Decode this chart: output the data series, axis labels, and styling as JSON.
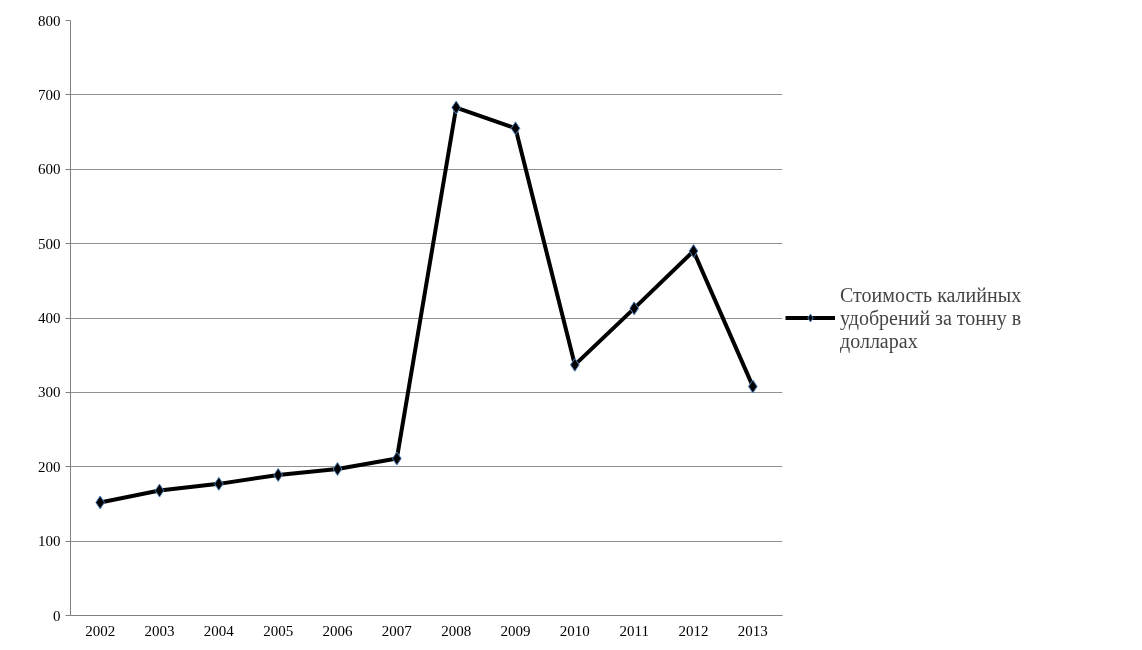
{
  "chart_data": {
    "type": "line",
    "categories": [
      "2002",
      "2003",
      "2004",
      "2005",
      "2006",
      "2007",
      "2008",
      "2009",
      "2010",
      "2011",
      "2012",
      "2013"
    ],
    "series": [
      {
        "name": "Стоимость калийных удобрений за тонну в долларах",
        "color": "#000000",
        "values": [
          152,
          168,
          177,
          189,
          197,
          211,
          683,
          655,
          337,
          413,
          490,
          308
        ]
      }
    ],
    "ylim": [
      0,
      800
    ],
    "yticks": [
      0,
      100,
      200,
      300,
      400,
      500,
      600,
      700,
      800
    ],
    "grid": "y",
    "legend": "right",
    "marker": "diamond",
    "line_style": "solid"
  }
}
